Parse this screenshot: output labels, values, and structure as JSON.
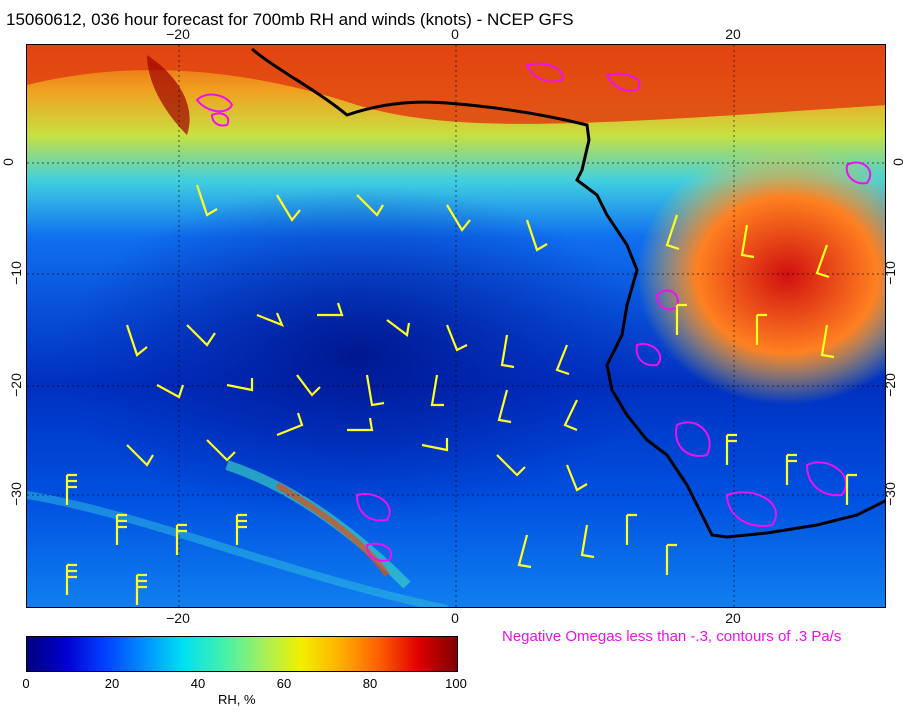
{
  "title": "15060612, 036 hour forecast for 700mb RH and winds (knots) - NCEP GFS",
  "map": {
    "lon_ticks": [
      "−20",
      "0",
      "20"
    ],
    "lat_ticks": [
      "0",
      "−10",
      "−20",
      "−30"
    ]
  },
  "omega_note": "Negative Omegas less than -.3, contours of .3 Pa/s",
  "colorbar": {
    "ticks": [
      "0",
      "20",
      "40",
      "60",
      "80",
      "100"
    ],
    "label": "RH, %"
  },
  "colors": {
    "coastline": "#000000",
    "wind_barbs": "#ffff22",
    "omega_contours": "#ee11ee",
    "gridlines": "#000000"
  }
}
